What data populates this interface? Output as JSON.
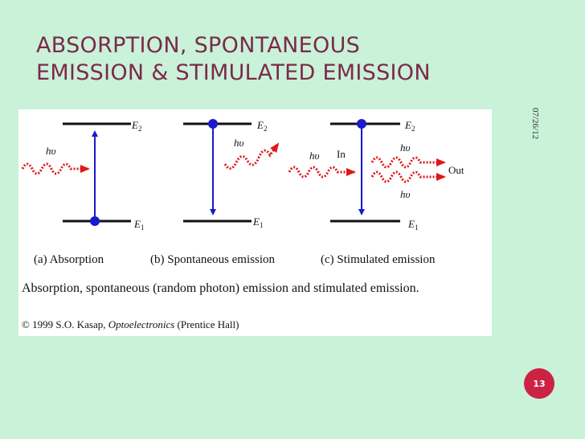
{
  "slide": {
    "title_line1": "ABSORPTION, SPONTANEOUS",
    "title_line2": "EMISSION & STIMULATED EMISSION",
    "date": "07/26/12",
    "page_number": "13"
  },
  "figure": {
    "levels": {
      "upper_symbol": "E",
      "upper_subscript": "2",
      "lower_symbol": "E",
      "lower_subscript": "1"
    },
    "photon_label": "hυ",
    "in_label": "In",
    "out_label": "Out",
    "labels": {
      "a": "(a) Absorption",
      "b": "(b) Spontaneous emission",
      "c": "(c) Stimulated emission"
    },
    "caption": "Absorption, spontaneous (random photon) emission and stimulated emission.",
    "credit_prefix": "© 1999 S.O. Kasap,",
    "credit_book": "Optoelectronics",
    "credit_suffix": "(Prentice Hall)"
  },
  "colors": {
    "title": "#7b2a4b",
    "background": "#c9f2d9",
    "arrow_blue": "#1a1acc",
    "photon_red": "#e01818",
    "badge": "#cc2244"
  }
}
